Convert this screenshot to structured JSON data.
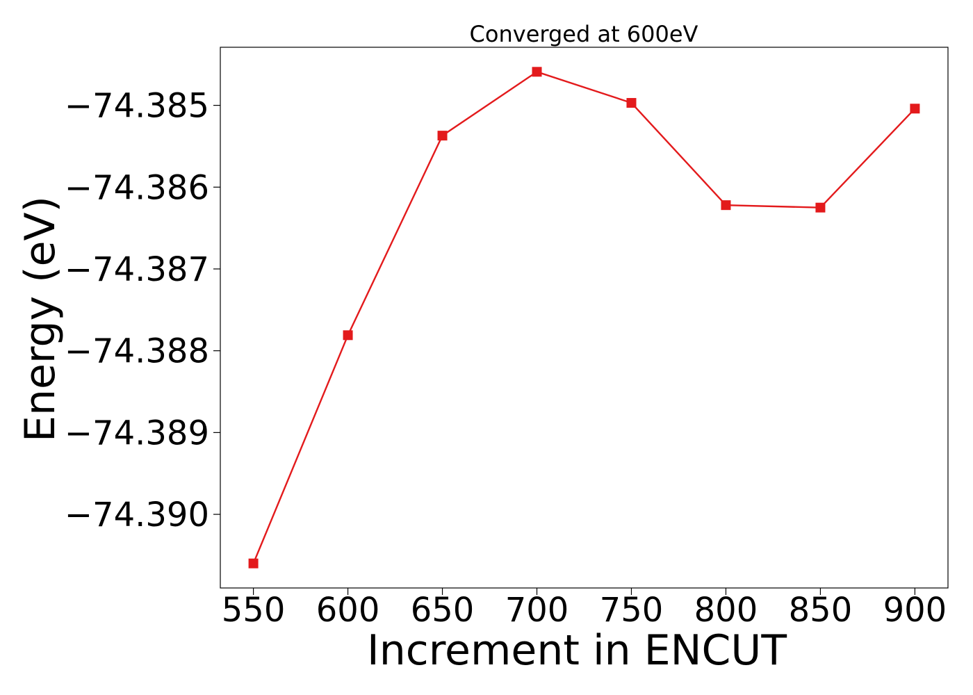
{
  "chart_data": {
    "type": "line",
    "title": "Converged at 600eV",
    "xlabel": "Increment in ENCUT",
    "ylabel": "Energy (eV)",
    "x": [
      550,
      600,
      650,
      700,
      750,
      800,
      850,
      900
    ],
    "series": [
      {
        "values": [
          -74.3906,
          -74.38781,
          -74.38537,
          -74.38459,
          -74.38497,
          -74.38622,
          -74.38625,
          -74.38504
        ],
        "color": "#e31a1c",
        "marker": "square"
      }
    ],
    "xticks": [
      550,
      600,
      650,
      700,
      750,
      800,
      850,
      900
    ],
    "xtick_labels": [
      "550",
      "600",
      "650",
      "700",
      "750",
      "800",
      "850",
      "900"
    ],
    "yticks": [
      -74.39,
      -74.389,
      -74.388,
      -74.387,
      -74.386,
      -74.385
    ],
    "ytick_labels": [
      "−74.390",
      "−74.389",
      "−74.388",
      "−74.387",
      "−74.386",
      "−74.385"
    ],
    "xlim": [
      532.5,
      917.5
    ],
    "ylim": [
      -74.3909,
      -74.38429
    ],
    "grid": false,
    "legend": "none"
  }
}
